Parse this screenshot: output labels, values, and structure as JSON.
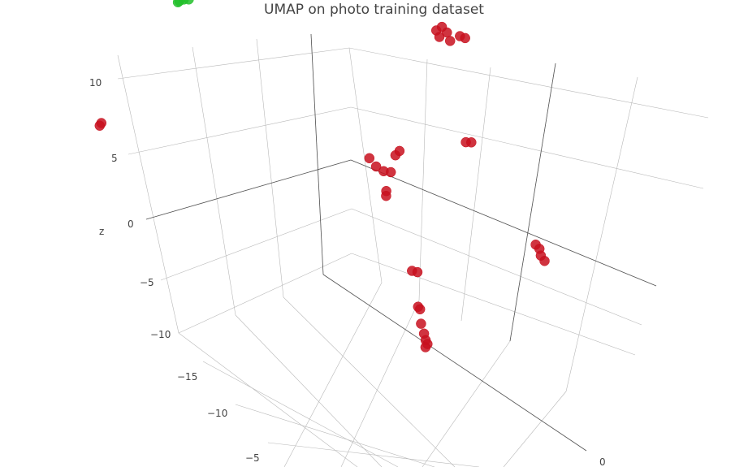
{
  "chart_data": {
    "type": "scatter3d",
    "title": "UMAP on photo training dataset",
    "zlabel": "z",
    "xlabel": "",
    "ylabel": "",
    "z_ticks": [
      "10",
      "5",
      "0",
      "−5",
      "−10",
      "−15"
    ],
    "x_ticks": [
      "−10",
      "−5"
    ],
    "y_ticks": [
      "0"
    ],
    "grid": true,
    "series": [
      {
        "color": "#22c02a",
        "points": [
          {
            "x": -10.5,
            "y": 11.0,
            "z": 7.0
          },
          {
            "x": -10.2,
            "y": 11.3,
            "z": 7.3
          },
          {
            "x": -9.9,
            "y": 11.1,
            "z": 7.5
          },
          {
            "x": -10.4,
            "y": 10.8,
            "z": 7.2
          }
        ]
      },
      {
        "color": "#c8101e",
        "points": [
          {
            "x": -14.0,
            "y": 2.0,
            "z": -3.0
          },
          {
            "x": -14.1,
            "y": 2.1,
            "z": -3.3
          },
          {
            "x": 4.0,
            "y": 12.0,
            "z": 11.0
          },
          {
            "x": 4.3,
            "y": 12.2,
            "z": 11.4
          },
          {
            "x": 4.6,
            "y": 12.0,
            "z": 11.1
          },
          {
            "x": 4.2,
            "y": 11.7,
            "z": 10.6
          },
          {
            "x": 5.3,
            "y": 12.4,
            "z": 11.0
          },
          {
            "x": 5.6,
            "y": 12.3,
            "z": 11.0
          },
          {
            "x": 4.8,
            "y": 11.8,
            "z": 10.5
          },
          {
            "x": 1.0,
            "y": 3.5,
            "z": 0.5
          },
          {
            "x": 1.4,
            "y": 3.3,
            "z": 0.0
          },
          {
            "x": 1.8,
            "y": 3.6,
            "z": -0.3
          },
          {
            "x": 2.4,
            "y": 4.3,
            "z": 1.2
          },
          {
            "x": 2.6,
            "y": 4.6,
            "z": 1.6
          },
          {
            "x": 2.2,
            "y": 3.6,
            "z": -0.2
          },
          {
            "x": 2.0,
            "y": 3.0,
            "z": -1.8
          },
          {
            "x": 2.0,
            "y": 2.9,
            "z": -2.2
          },
          {
            "x": 6.0,
            "y": 8.4,
            "z": 3.0
          },
          {
            "x": 6.3,
            "y": 8.5,
            "z": 3.1
          },
          {
            "x": 10.0,
            "y": 7.8,
            "z": -4.0
          },
          {
            "x": 10.2,
            "y": 7.9,
            "z": -4.3
          },
          {
            "x": 10.3,
            "y": 7.7,
            "z": -4.8
          },
          {
            "x": 10.5,
            "y": 7.8,
            "z": -5.2
          },
          {
            "x": 3.5,
            "y": 2.5,
            "z": -8.0
          },
          {
            "x": 3.8,
            "y": 2.6,
            "z": -8.0
          },
          {
            "x": 4.0,
            "y": 0.8,
            "z": -10.5
          },
          {
            "x": 4.1,
            "y": 0.9,
            "z": -10.7
          },
          {
            "x": 4.2,
            "y": 0.4,
            "z": -11.8
          },
          {
            "x": 4.4,
            "y": 0.1,
            "z": -12.5
          },
          {
            "x": 4.5,
            "y": 0.0,
            "z": -13.0
          },
          {
            "x": 4.6,
            "y": 0.0,
            "z": -13.3
          },
          {
            "x": 4.5,
            "y": -0.1,
            "z": -13.6
          }
        ]
      }
    ]
  }
}
